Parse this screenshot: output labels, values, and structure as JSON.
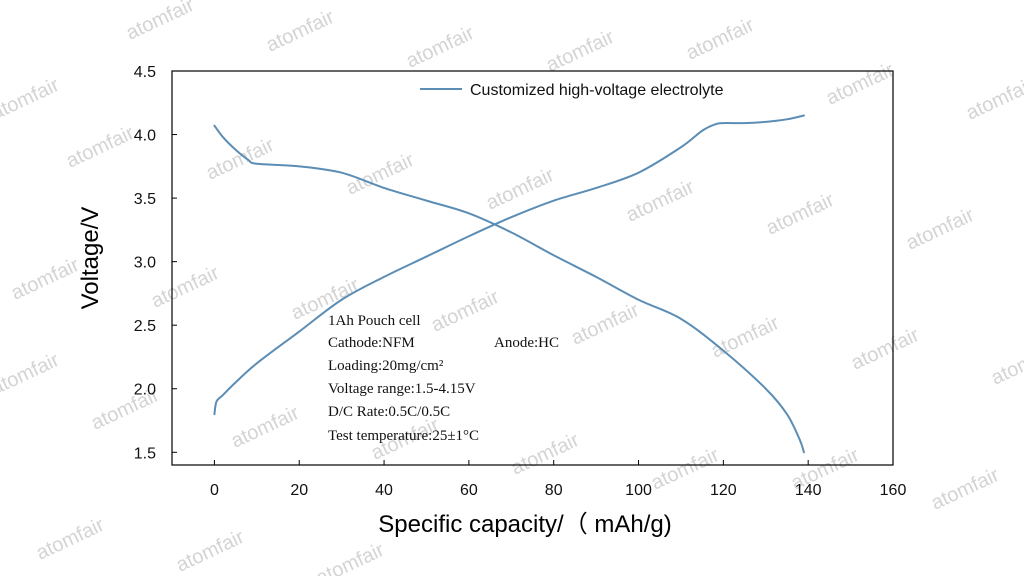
{
  "chart_data": {
    "type": "line",
    "title": "",
    "xlabel": "Specific capacity/（ mAh/g)",
    "ylabel": "Voltage/V",
    "xlim": [
      -10,
      160
    ],
    "ylim": [
      1.4,
      4.5
    ],
    "x_ticks": [
      "0",
      "20",
      "40",
      "60",
      "80",
      "100",
      "120",
      "140",
      "160"
    ],
    "y_ticks": [
      "1.5",
      "2.0",
      "2.5",
      "3.0",
      "3.5",
      "4.0",
      "4.5"
    ],
    "grid": false,
    "legend_position": "top-center",
    "legend": [
      "Customized high-voltage electrolyte"
    ],
    "series_color": "#5b8db5",
    "series": [
      {
        "name": "Customized high-voltage electrolyte",
        "segment": "charge",
        "x": [
          0,
          0.5,
          2,
          5,
          10,
          20,
          30,
          40,
          50,
          60,
          70,
          80,
          90,
          100,
          110,
          115,
          118,
          120,
          125,
          130,
          135,
          139
        ],
        "y": [
          1.8,
          1.9,
          1.95,
          2.05,
          2.2,
          2.45,
          2.7,
          2.88,
          3.04,
          3.2,
          3.35,
          3.48,
          3.58,
          3.7,
          3.9,
          4.03,
          4.08,
          4.09,
          4.09,
          4.1,
          4.12,
          4.15
        ]
      },
      {
        "name": "Customized high-voltage electrolyte",
        "segment": "discharge",
        "x": [
          0,
          2,
          5,
          8,
          10,
          20,
          30,
          40,
          50,
          60,
          70,
          80,
          90,
          100,
          110,
          120,
          130,
          135,
          138,
          139
        ],
        "y": [
          4.07,
          3.98,
          3.88,
          3.8,
          3.77,
          3.75,
          3.7,
          3.58,
          3.48,
          3.38,
          3.23,
          3.05,
          2.88,
          2.7,
          2.55,
          2.3,
          2.0,
          1.8,
          1.6,
          1.5
        ]
      }
    ],
    "annotations": [
      "1Ah Pouch cell",
      "Cathode:NFM",
      "Anode:HC",
      "Loading:20mg/cm²",
      "Voltage range:1.5-4.15V",
      "D/C Rate:0.5C/0.5C",
      "Test temperature:25±1°C"
    ]
  },
  "watermark": "atomfair"
}
